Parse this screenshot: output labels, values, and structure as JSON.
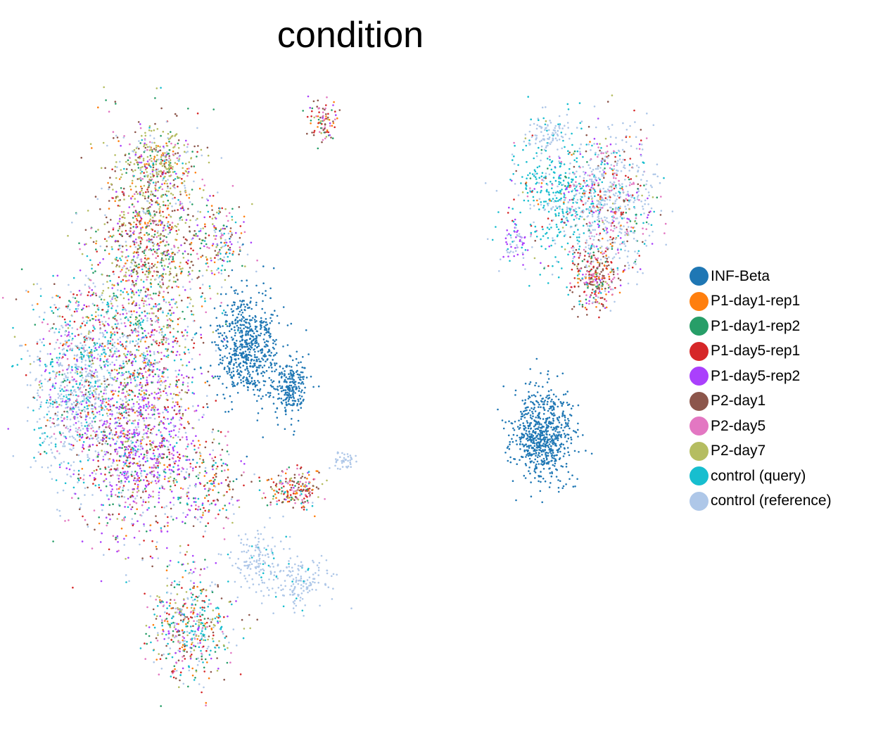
{
  "chart_data": {
    "type": "scatter",
    "title": "condition",
    "xlabel": "",
    "ylabel": "",
    "grid": false,
    "axes_visible": false,
    "legend_position": "right",
    "series": [
      {
        "name": "INF-Beta",
        "color": "#1f77b4"
      },
      {
        "name": "P1-day1-rep1",
        "color": "#ff7f0e"
      },
      {
        "name": "P1-day1-rep2",
        "color": "#279e68"
      },
      {
        "name": "P1-day5-rep1",
        "color": "#d62728"
      },
      {
        "name": "P1-day5-rep2",
        "color": "#aa40fc"
      },
      {
        "name": "P2-day1",
        "color": "#8c564b"
      },
      {
        "name": "P2-day5",
        "color": "#e377c2"
      },
      {
        "name": "P2-day7",
        "color": "#b5bd61"
      },
      {
        "name": "control (query)",
        "color": "#17becf"
      },
      {
        "name": "control (reference)",
        "color": "#aec7e8"
      }
    ]
  }
}
